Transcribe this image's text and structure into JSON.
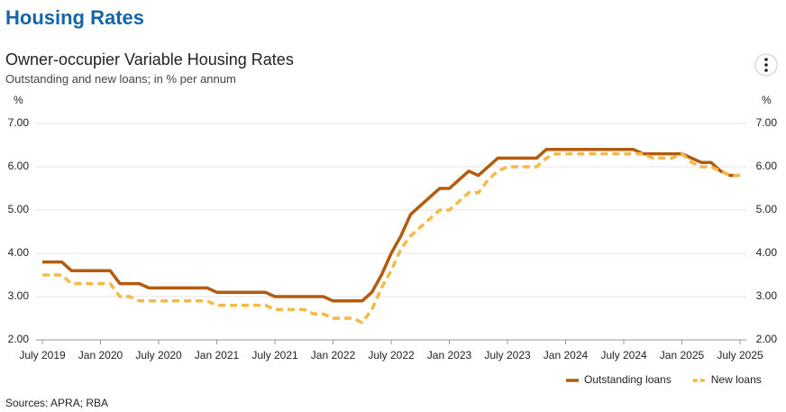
{
  "page_title": "Housing Rates",
  "chart_data": {
    "type": "line",
    "title": "Owner-occupier Variable Housing Rates",
    "subtitle": "Outstanding and new loans; in % per annum",
    "y_unit": "%",
    "source": "Sources: APRA; RBA",
    "x": [
      "2019-07",
      "2019-08",
      "2019-09",
      "2019-10",
      "2019-11",
      "2019-12",
      "2020-01",
      "2020-02",
      "2020-03",
      "2020-04",
      "2020-05",
      "2020-06",
      "2020-07",
      "2020-08",
      "2020-09",
      "2020-10",
      "2020-11",
      "2020-12",
      "2021-01",
      "2021-02",
      "2021-03",
      "2021-04",
      "2021-05",
      "2021-06",
      "2021-07",
      "2021-08",
      "2021-09",
      "2021-10",
      "2021-11",
      "2021-12",
      "2022-01",
      "2022-02",
      "2022-03",
      "2022-04",
      "2022-05",
      "2022-06",
      "2022-07",
      "2022-08",
      "2022-09",
      "2022-10",
      "2022-11",
      "2022-12",
      "2023-01",
      "2023-02",
      "2023-03",
      "2023-04",
      "2023-05",
      "2023-06",
      "2023-07",
      "2023-08",
      "2023-09",
      "2023-10",
      "2023-11",
      "2023-12",
      "2024-01",
      "2024-02",
      "2024-03",
      "2024-04",
      "2024-05",
      "2024-06",
      "2024-07",
      "2024-08",
      "2024-09",
      "2024-10",
      "2024-11",
      "2024-12",
      "2025-01",
      "2025-02",
      "2025-03",
      "2025-04",
      "2025-05",
      "2025-06",
      "2025-07"
    ],
    "series": [
      {
        "name": "Outstanding loans",
        "color": "#b35c0f",
        "dashed": false,
        "values": [
          3.8,
          3.8,
          3.8,
          3.6,
          3.6,
          3.6,
          3.6,
          3.6,
          3.3,
          3.3,
          3.3,
          3.2,
          3.2,
          3.2,
          3.2,
          3.2,
          3.2,
          3.2,
          3.1,
          3.1,
          3.1,
          3.1,
          3.1,
          3.1,
          3.0,
          3.0,
          3.0,
          3.0,
          3.0,
          3.0,
          2.9,
          2.9,
          2.9,
          2.9,
          3.1,
          3.5,
          4.0,
          4.4,
          4.9,
          5.1,
          5.3,
          5.5,
          5.5,
          5.7,
          5.9,
          5.8,
          6.0,
          6.2,
          6.2,
          6.2,
          6.2,
          6.2,
          6.4,
          6.4,
          6.4,
          6.4,
          6.4,
          6.4,
          6.4,
          6.4,
          6.4,
          6.4,
          6.3,
          6.3,
          6.3,
          6.3,
          6.3,
          6.2,
          6.1,
          6.1,
          5.9,
          5.8,
          5.8
        ]
      },
      {
        "name": "New loans",
        "color": "#f5b94a",
        "dashed": true,
        "values": [
          3.5,
          3.5,
          3.5,
          3.3,
          3.3,
          3.3,
          3.3,
          3.3,
          3.0,
          3.0,
          2.9,
          2.9,
          2.9,
          2.9,
          2.9,
          2.9,
          2.9,
          2.9,
          2.8,
          2.8,
          2.8,
          2.8,
          2.8,
          2.8,
          2.7,
          2.7,
          2.7,
          2.7,
          2.6,
          2.6,
          2.5,
          2.5,
          2.5,
          2.4,
          2.7,
          3.2,
          3.6,
          4.1,
          4.4,
          4.6,
          4.8,
          5.0,
          5.0,
          5.2,
          5.4,
          5.4,
          5.7,
          5.9,
          6.0,
          6.0,
          6.0,
          6.0,
          6.2,
          6.3,
          6.3,
          6.3,
          6.3,
          6.3,
          6.3,
          6.3,
          6.3,
          6.3,
          6.3,
          6.2,
          6.2,
          6.2,
          6.3,
          6.1,
          6.0,
          6.0,
          5.9,
          5.8,
          5.8
        ]
      }
    ],
    "xlim": [
      "2019-07",
      "2025-07"
    ],
    "xticks": [
      {
        "value": "2019-07",
        "label": "July 2019"
      },
      {
        "value": "2020-01",
        "label": "Jan 2020"
      },
      {
        "value": "2020-07",
        "label": "July 2020"
      },
      {
        "value": "2021-01",
        "label": "Jan 2021"
      },
      {
        "value": "2021-07",
        "label": "July 2021"
      },
      {
        "value": "2022-01",
        "label": "Jan 2022"
      },
      {
        "value": "2022-07",
        "label": "July 2022"
      },
      {
        "value": "2023-01",
        "label": "Jan 2023"
      },
      {
        "value": "2023-07",
        "label": "July 2023"
      },
      {
        "value": "2024-01",
        "label": "Jan 2024"
      },
      {
        "value": "2024-07",
        "label": "July 2024"
      },
      {
        "value": "2025-01",
        "label": "Jan 2025"
      },
      {
        "value": "2025-07",
        "label": "July 2025"
      }
    ],
    "ylim": [
      2,
      7
    ],
    "yticks": [
      {
        "value": 2,
        "label": "2.00"
      },
      {
        "value": 3,
        "label": "3.00"
      },
      {
        "value": 4,
        "label": "4.00"
      },
      {
        "value": 5,
        "label": "5.00"
      },
      {
        "value": 6,
        "label": "6.00"
      },
      {
        "value": 7,
        "label": "7.00"
      }
    ],
    "grid": true,
    "legend": "bottom-right"
  }
}
